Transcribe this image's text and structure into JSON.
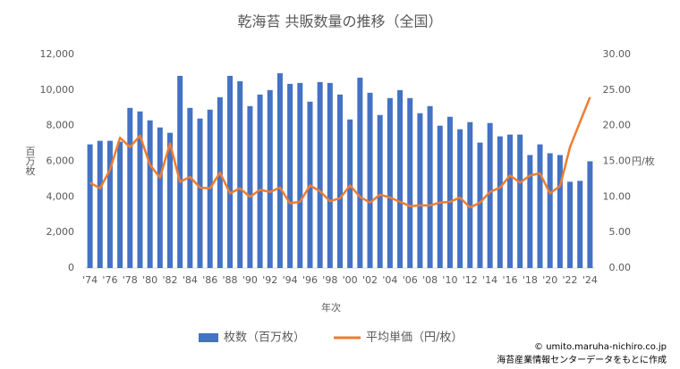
{
  "chart_data": {
    "type": "bar_line",
    "title": "乾海苔 共販数量の推移（全国）",
    "categories": [
      "'74",
      null,
      "'76",
      null,
      "'78",
      null,
      "'80",
      null,
      "'82",
      null,
      "'84",
      null,
      "'86",
      null,
      "'88",
      null,
      "'90",
      null,
      "'92",
      null,
      "'94",
      null,
      "'96",
      null,
      "'98",
      null,
      "'00",
      null,
      "'02",
      null,
      "'04",
      null,
      "'06",
      null,
      "'08",
      null,
      "'10",
      null,
      "'12",
      null,
      "'14",
      null,
      "'16",
      null,
      "'18",
      null,
      "'20",
      null,
      "'22",
      null,
      "'24"
    ],
    "series": [
      {
        "name": "枚数（百万枚）",
        "type": "bar",
        "color": "#4472c4",
        "axis": "y",
        "values": [
          6950,
          7150,
          7150,
          7100,
          9000,
          8800,
          8300,
          7900,
          7600,
          10800,
          9000,
          8400,
          8900,
          9600,
          10800,
          10500,
          9100,
          9750,
          10000,
          10950,
          10350,
          10400,
          9350,
          10450,
          10400,
          9750,
          8350,
          10700,
          9850,
          8600,
          9550,
          10000,
          9550,
          8700,
          9100,
          8000,
          8500,
          7800,
          8200,
          7050,
          8150,
          7400,
          7500,
          7500,
          6350,
          6950,
          6450,
          6350,
          4850,
          4900,
          6000
        ]
      },
      {
        "name": "平均単価（円/枚）",
        "type": "line",
        "color": "#ed7d31",
        "axis": "y2",
        "values": [
          12.0,
          11.2,
          13.8,
          18.3,
          17.0,
          18.6,
          14.5,
          12.7,
          17.5,
          12.1,
          12.8,
          11.3,
          11.2,
          13.4,
          10.5,
          11.2,
          10.0,
          11.0,
          10.7,
          11.3,
          9.1,
          9.3,
          11.6,
          10.8,
          9.4,
          9.8,
          11.6,
          10.0,
          9.2,
          10.3,
          9.9,
          9.3,
          8.7,
          8.8,
          8.8,
          9.2,
          9.3,
          9.9,
          8.5,
          9.2,
          10.7,
          11.3,
          13.0,
          12.0,
          13.0,
          13.3,
          10.5,
          11.5,
          17.0,
          20.5,
          24.0
        ]
      }
    ],
    "ylim": [
      0,
      12000
    ],
    "yticks": [
      0,
      {
        "value": 2000,
        "label": "2,000"
      },
      {
        "value": 4000,
        "label": "4,000"
      },
      {
        "value": 6000,
        "label": "6,000"
      },
      {
        "value": 8000,
        "label": "8,000"
      },
      {
        "value": 10000,
        "label": "10,000"
      },
      {
        "value": 12000,
        "label": "12,000"
      }
    ],
    "y2lim": [
      0,
      30
    ],
    "y2ticks": [
      {
        "value": 0,
        "label": "0.00"
      },
      {
        "value": 5,
        "label": "5.00"
      },
      {
        "value": 10,
        "label": "10.00"
      },
      {
        "value": 15,
        "label": "15.00"
      },
      {
        "value": 20,
        "label": "20.00"
      },
      {
        "value": 25,
        "label": "25.00"
      },
      {
        "value": 30,
        "label": "30.00"
      }
    ],
    "ylabel": "百万枚",
    "y2label": "円/枚",
    "xlabel": "年次",
    "legend": "bottom",
    "grid": false,
    "credits": [
      "© umito.maruha-nichiro.co.jp",
      "海苔産業情報センターデータをもとに作成"
    ]
  }
}
